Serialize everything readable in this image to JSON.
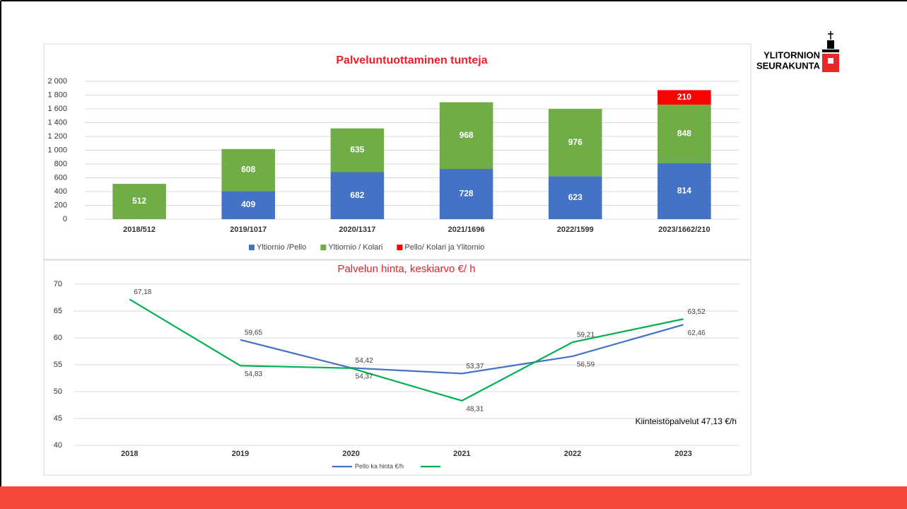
{
  "chart_data": [
    {
      "type": "bar",
      "stacked": true,
      "title": "Palveluntuottaminen tunteja",
      "categories": [
        "2018/512",
        "2019/1017",
        "2020/1317",
        "2021/1696",
        "2022/1599",
        "2023/1662/210"
      ],
      "series": [
        {
          "name": "Yltiornio /Pello",
          "color": "#4472c4",
          "values": [
            0,
            409,
            682,
            728,
            623,
            814
          ]
        },
        {
          "name": "Yltiornio / Kolari",
          "color": "#70ad47",
          "values": [
            512,
            608,
            635,
            968,
            976,
            848
          ]
        },
        {
          "name": "Pello/ Kolari ja Ylitornio",
          "color": "#ff0000",
          "values": [
            null,
            null,
            null,
            null,
            null,
            210
          ]
        }
      ],
      "ylim": [
        0,
        2000
      ],
      "yticks": [
        0,
        200,
        400,
        600,
        800,
        {
          "value": 1000,
          "label": "1 000"
        },
        {
          "value": 1200,
          "label": "1 200"
        },
        {
          "value": 1400,
          "label": "1 400"
        },
        {
          "value": 1600,
          "label": "1 600"
        },
        {
          "value": 1800,
          "label": "1 800"
        },
        {
          "value": 2000,
          "label": "2 000"
        }
      ],
      "grid": true,
      "legend": "bottom"
    },
    {
      "type": "line",
      "title": "Palvelun hinta,  keskiarvo  €/ h",
      "categories": [
        "2018",
        "2019",
        "2020",
        "2021",
        "2022",
        "2023"
      ],
      "series": [
        {
          "name": "Pello ka hinta €/h",
          "color": "#4472c4",
          "values": [
            null,
            59.65,
            54.42,
            53.37,
            56.59,
            62.46
          ],
          "value_labels": [
            null,
            "59,65",
            "54,42",
            "53,37",
            "56,59",
            "62,46"
          ]
        },
        {
          "color": "#00b050",
          "values": [
            67.18,
            54.83,
            54.37,
            48.31,
            59.21,
            63.52
          ],
          "value_labels": [
            "67,18",
            "54,83",
            "54,37",
            "48,31",
            "59,21",
            "63,52"
          ]
        }
      ],
      "ylim": [
        40,
        70
      ],
      "yticks": [
        40,
        45,
        50,
        55,
        60,
        65,
        70
      ],
      "grid": true,
      "legend": "bottom",
      "annotation": "Kiinteistöpalvelut 47,13 €/h"
    }
  ],
  "logo": [
    "YLITORNION",
    "SEURAKUNTA"
  ]
}
